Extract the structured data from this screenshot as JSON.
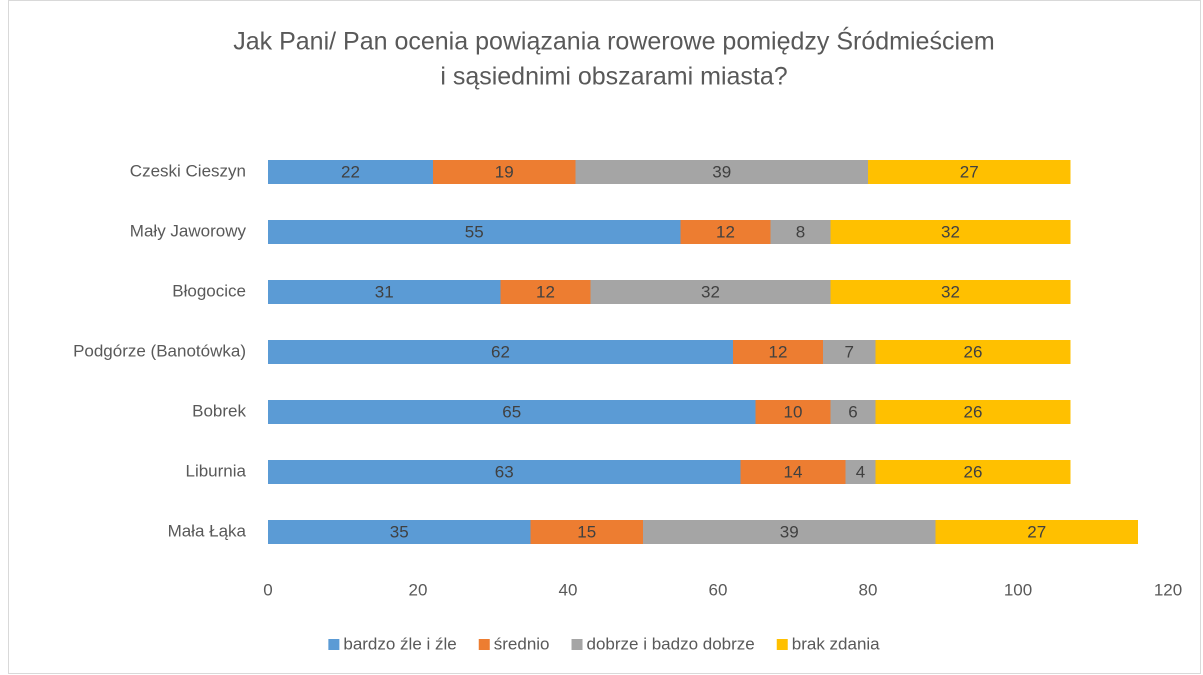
{
  "chart_data": {
    "type": "stacked_barh",
    "title": [
      "Jak Pani/ Pan ocenia powiązania rowerowe pomiędzy Śródmieściem",
      "i sąsiednimi obszarami miasta?"
    ],
    "categories": [
      "Czeski Cieszyn",
      "Mały Jaworowy",
      "Błogocice",
      "Podgórze (Banotówka)",
      "Bobrek",
      "Liburnia",
      "Mała Łąka"
    ],
    "series": [
      {
        "name": "bardzo źle i źle",
        "color": "#5b9bd5",
        "values": [
          22,
          55,
          31,
          62,
          65,
          63,
          35
        ]
      },
      {
        "name": "średnio",
        "color": "#ed7d31",
        "values": [
          19,
          12,
          12,
          12,
          10,
          14,
          15
        ]
      },
      {
        "name": "dobrze i badzo dobrze",
        "color": "#a5a5a5",
        "values": [
          39,
          8,
          32,
          7,
          6,
          4,
          39
        ]
      },
      {
        "name": "brak zdania",
        "color": "#ffc000",
        "values": [
          27,
          32,
          32,
          26,
          26,
          26,
          27
        ]
      }
    ],
    "xlim": [
      0,
      120
    ],
    "xticks": [
      0,
      20,
      40,
      60,
      80,
      100,
      120
    ],
    "grid": false,
    "legend": "bottom"
  }
}
